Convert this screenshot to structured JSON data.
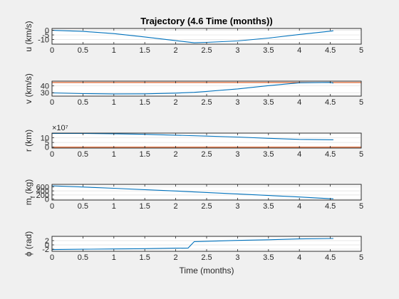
{
  "figure": {
    "title": "Trajectory (4.6 Time (months))",
    "xlabel": "Time (months)"
  },
  "chart_data": [
    {
      "type": "line",
      "title": "Trajectory (4.6 Time (months))",
      "ylabel": "u (km/s)",
      "xlim": [
        0,
        5
      ],
      "ylim": [
        -15,
        2
      ],
      "xticks": [
        "0",
        "0.5",
        "1",
        "1.5",
        "2",
        "2.5",
        "3",
        "3.5",
        "4",
        "4.5",
        "5"
      ],
      "yticks": [
        {
          "v": 0,
          "label": "0"
        },
        {
          "v": -5,
          "label": "-5"
        },
        {
          "v": -10,
          "label": "-10"
        }
      ],
      "exponent": "",
      "grid": "y",
      "series": [
        {
          "color": "#0072BD",
          "x": [
            0,
            0.5,
            1,
            1.5,
            2,
            2.3,
            2.5,
            3,
            3.5,
            4,
            4.5,
            4.55
          ],
          "y": [
            0,
            -1.2,
            -3.6,
            -7.2,
            -11.2,
            -13.5,
            -13.1,
            -11.5,
            -8.4,
            -4.5,
            -0.9,
            -0.5
          ]
        }
      ]
    },
    {
      "type": "line",
      "ylabel": "v (km/s)",
      "xlim": [
        0,
        5
      ],
      "ylim": [
        25,
        47
      ],
      "xticks": [
        "0",
        "0.5",
        "1",
        "1.5",
        "2",
        "2.5",
        "3",
        "3.5",
        "4",
        "4.5",
        "5"
      ],
      "yticks": [
        {
          "v": 40,
          "label": "40"
        },
        {
          "v": 30,
          "label": "30"
        }
      ],
      "exponent": "",
      "grid": "y",
      "series": [
        {
          "color": "#D95319",
          "x": [
            0,
            5
          ],
          "y": [
            45,
            45
          ]
        },
        {
          "color": "#0072BD",
          "x": [
            0,
            0.5,
            1,
            1.5,
            2,
            2.3,
            2.5,
            3,
            3.5,
            4,
            4.5,
            4.55
          ],
          "y": [
            29.7,
            28.7,
            28.2,
            28.4,
            29.4,
            30.6,
            31.9,
            35.6,
            40.4,
            44.6,
            45.1,
            44.2
          ]
        }
      ]
    },
    {
      "type": "line",
      "ylabel": "r (km)",
      "xlim": [
        0,
        5
      ],
      "ylim": [
        -1,
        15
      ],
      "xticks": [
        "0",
        "0.5",
        "1",
        "1.5",
        "2",
        "2.5",
        "3",
        "3.5",
        "4",
        "4.5",
        "5"
      ],
      "yticks": [
        {
          "v": 10,
          "label": "10"
        },
        {
          "v": 5,
          "label": "5"
        },
        {
          "v": 0,
          "label": "0"
        }
      ],
      "exponent": "×10⁷",
      "grid": "y",
      "series": [
        {
          "color": "#D95319",
          "x": [
            0,
            5
          ],
          "y": [
            0,
            0
          ]
        },
        {
          "color": "#0072BD",
          "x": [
            0,
            0.5,
            1,
            1.5,
            2,
            2.5,
            3,
            3.5,
            4,
            4.5,
            4.55
          ],
          "y": [
            14.7,
            14.6,
            14.3,
            13.7,
            12.8,
            11.8,
            10.8,
            9.4,
            8.3,
            7.9,
            7.9
          ]
        }
      ]
    },
    {
      "type": "line",
      "ylabel": "m_f (kg)",
      "xlim": [
        0,
        5
      ],
      "ylim": [
        -50,
        720
      ],
      "xticks": [
        "0",
        "0.5",
        "1",
        "1.5",
        "2",
        "2.5",
        "3",
        "3.5",
        "4",
        "4.5",
        "5"
      ],
      "yticks": [
        {
          "v": 600,
          "label": "600"
        },
        {
          "v": 400,
          "label": "400"
        },
        {
          "v": 200,
          "label": "200"
        },
        {
          "v": 0,
          "label": "0"
        }
      ],
      "exponent": "",
      "grid": "y",
      "series": [
        {
          "color": "#0072BD",
          "x": [
            0,
            0.5,
            1,
            1.5,
            2,
            2.5,
            3,
            3.5,
            4,
            4.55
          ],
          "y": [
            650,
            590,
            528,
            460,
            395,
            320,
            250,
            175,
            100,
            10
          ]
        }
      ]
    },
    {
      "type": "line",
      "ylabel": "ϕ (rad)",
      "xlim": [
        0,
        5
      ],
      "ylim": [
        -3,
        4
      ],
      "xticks": [
        "0",
        "0.5",
        "1",
        "1.5",
        "2",
        "2.5",
        "3",
        "3.5",
        "4",
        "4.5",
        "5"
      ],
      "yticks": [
        {
          "v": 2,
          "label": "2"
        },
        {
          "v": 0,
          "label": "0"
        },
        {
          "v": -2,
          "label": "-2"
        }
      ],
      "exponent": "",
      "grid": "y",
      "series": [
        {
          "color": "#0072BD",
          "x": [
            0,
            0.5,
            1,
            1.5,
            2,
            2.2,
            2.3,
            2.5,
            3,
            3.5,
            4,
            4.55
          ],
          "y": [
            -2.2,
            -2.05,
            -1.9,
            -1.75,
            -1.55,
            -1.45,
            1.55,
            1.7,
            2.1,
            2.4,
            2.8,
            3.0
          ]
        }
      ]
    }
  ]
}
